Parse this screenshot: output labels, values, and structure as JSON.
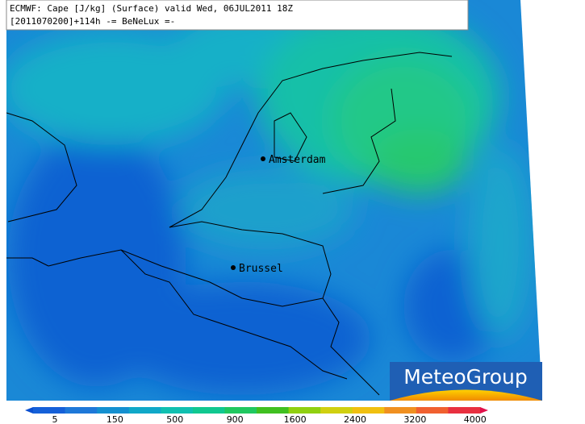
{
  "header": {
    "line1": "ECMWF: Cape [J/kg] (Surface) valid Wed, 06JUL2011 18Z",
    "line2": "[2011070200]+114h -= BeNeLux =-"
  },
  "cities": [
    {
      "label": "Amsterdam"
    },
    {
      "label": "Brussel"
    }
  ],
  "logo": "MeteoGroup",
  "legend": {
    "labels": [
      "5",
      "150",
      "500",
      "900",
      "1600",
      "2400",
      "3200",
      "4000"
    ],
    "colors": [
      "#0a4fd0",
      "#1560d8",
      "#1e78d8",
      "#1490d0",
      "#10a8c8",
      "#10c0b0",
      "#10c890",
      "#20c860",
      "#40c020",
      "#90d010",
      "#d0d010",
      "#f0c010",
      "#f09020",
      "#f06030",
      "#e83040",
      "#e0104a"
    ]
  }
}
